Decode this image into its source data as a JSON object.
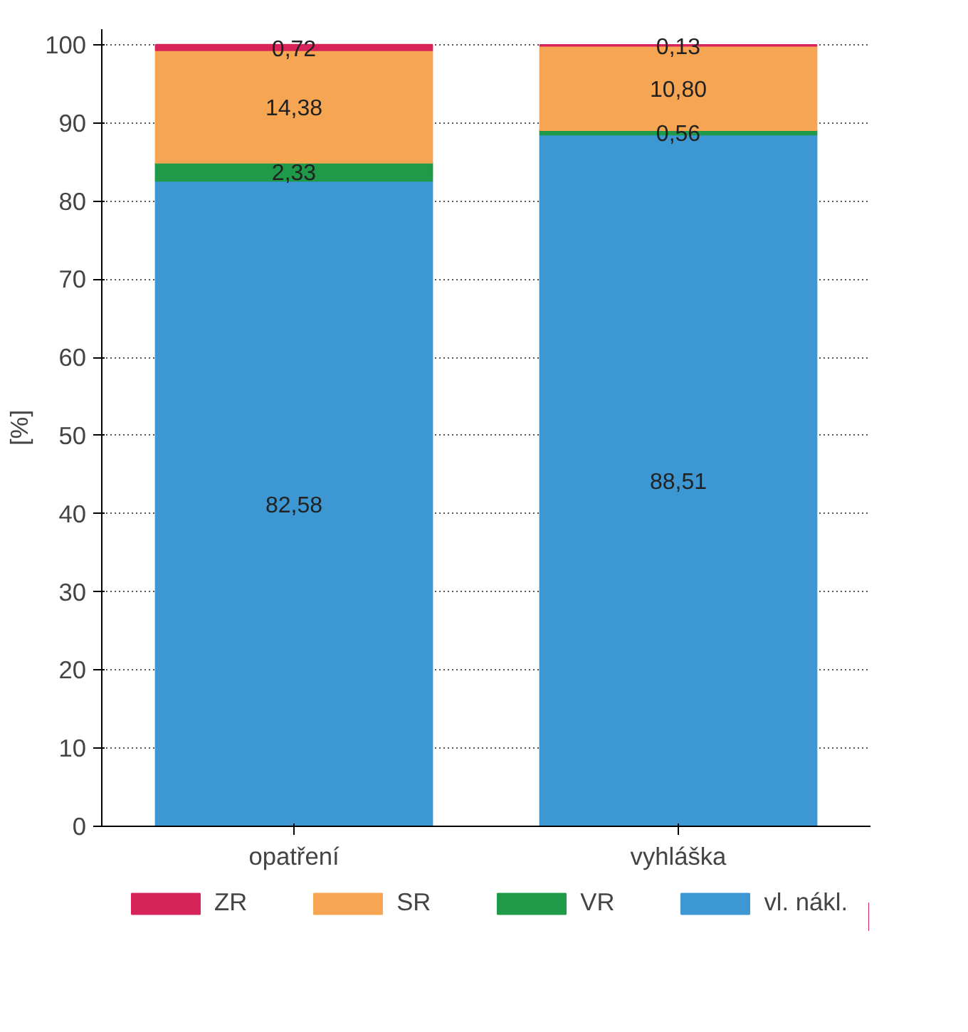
{
  "chart_data": {
    "type": "bar",
    "stacked": true,
    "ylabel": "[%]",
    "categories": [
      "opatření",
      "vyhláška"
    ],
    "series": [
      {
        "name": "vl. nákl.",
        "color": "#3c97d3",
        "values": [
          82.58,
          88.51
        ],
        "value_labels": [
          "82,58",
          "88,51"
        ]
      },
      {
        "name": "VR",
        "color": "#1f9a48",
        "values": [
          2.33,
          0.56
        ],
        "value_labels": [
          "2,33",
          "0,56"
        ]
      },
      {
        "name": "SR",
        "color": "#f6a553",
        "values": [
          14.38,
          10.8
        ],
        "value_labels": [
          "14,38",
          "10,80"
        ]
      },
      {
        "name": "ZR",
        "color": "#d6245a",
        "values": [
          0.72,
          0.13
        ],
        "value_labels": [
          "0,72",
          "0,13"
        ]
      }
    ],
    "ylim": [
      0,
      102
    ],
    "yticks": [
      0,
      10,
      20,
      30,
      40,
      50,
      60,
      70,
      80,
      90,
      100
    ],
    "grid": "y",
    "legend": "bottom"
  }
}
